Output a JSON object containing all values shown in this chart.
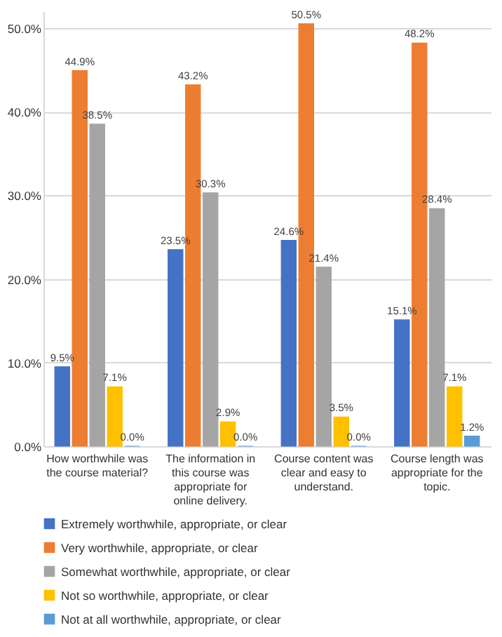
{
  "chart_data": {
    "type": "bar",
    "categories": [
      "How worthwhile was the course material?",
      "The information in this course was appropriate for online delivery.",
      "Course content was clear and easy to understand.",
      "Course length was appropriate for the topic."
    ],
    "series": [
      {
        "name": "Extremely worthwhile, appropriate, or clear",
        "color": "#4472c4",
        "values": [
          9.5,
          23.5,
          24.6,
          15.1
        ],
        "value_labels": [
          "9.5%",
          "23.5%",
          "24.6%",
          "15.1%"
        ]
      },
      {
        "name": "Very worthwhile, appropriate, or clear",
        "color": "#ed7d31",
        "values": [
          44.9,
          43.2,
          50.5,
          48.2
        ],
        "value_labels": [
          "44.9%",
          "43.2%",
          "50.5%",
          "48.2%"
        ]
      },
      {
        "name": "Somewhat worthwhile, appropriate, or clear",
        "color": "#a5a5a5",
        "values": [
          38.5,
          30.3,
          21.4,
          28.4
        ],
        "value_labels": [
          "38.5%",
          "30.3%",
          "21.4%",
          "28.4%"
        ]
      },
      {
        "name": "Not so worthwhile, appropriate, or clear",
        "color": "#ffc000",
        "values": [
          7.1,
          2.9,
          3.5,
          7.1
        ],
        "value_labels": [
          "7.1%",
          "2.9%",
          "3.5%",
          "7.1%"
        ]
      },
      {
        "name": "Not at all worthwhile, appropriate, or clear",
        "color": "#5b9bd5",
        "values": [
          0.0,
          0.0,
          0.0,
          1.2
        ],
        "value_labels": [
          "0.0%",
          "0.0%",
          "0.0%",
          "1.2%"
        ]
      }
    ],
    "ylim": [
      0,
      52
    ],
    "yticks": [
      {
        "value": 0,
        "label": "0.0%"
      },
      {
        "value": 10,
        "label": "10.0%"
      },
      {
        "value": 20,
        "label": "20.0%"
      },
      {
        "value": 30,
        "label": "30.0%"
      },
      {
        "value": 40,
        "label": "40.0%"
      },
      {
        "value": 50,
        "label": "50.0%"
      }
    ],
    "grid": "y",
    "legend": "bottom"
  }
}
